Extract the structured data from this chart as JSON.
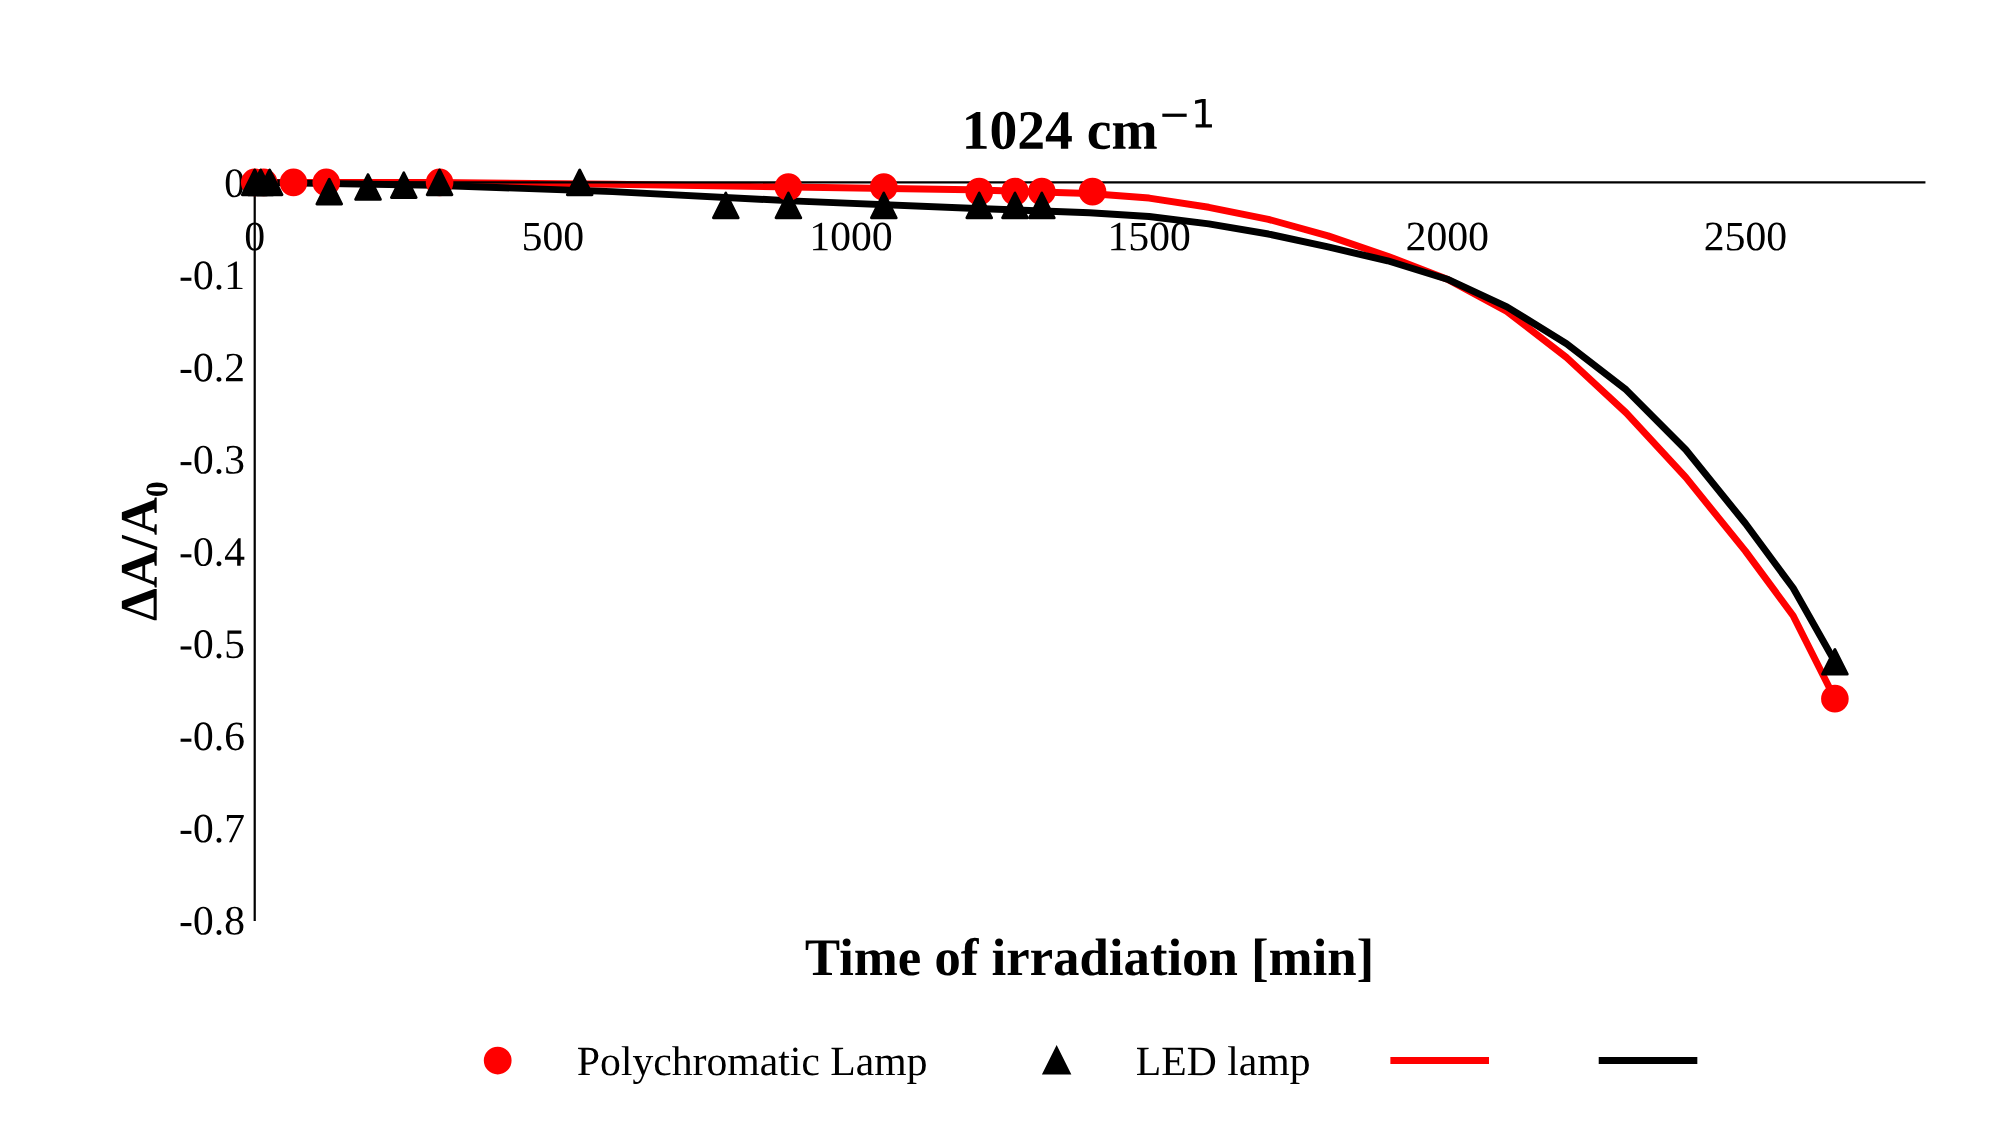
{
  "chart_data": {
    "type": "scatter",
    "title": "1024 cm$^{−1}$",
    "xlabel": "Time of irradiation [min]",
    "ylabel": "ΔA/A₀",
    "xlim": [
      0,
      2800
    ],
    "xticks": [
      0,
      500,
      1000,
      1500,
      2000,
      2500
    ],
    "ylim": [
      -0.8,
      0
    ],
    "yticks": [
      {
        "value": 0,
        "label": "0"
      },
      {
        "value": -0.1,
        "label": "-0.1"
      },
      {
        "value": -0.2,
        "label": "-0.2"
      },
      {
        "value": -0.3,
        "label": "-0.3"
      },
      {
        "value": -0.4,
        "label": "-0.4"
      },
      {
        "value": -0.5,
        "label": "-0.5"
      },
      {
        "value": -0.6,
        "label": "-0.6"
      },
      {
        "value": -0.7,
        "label": "-0.7"
      },
      {
        "value": -0.8,
        "label": "-0.8"
      }
    ],
    "grid": false,
    "legend": "bottom",
    "series": [
      {
        "name": "Polychromatic Lamp",
        "marker": "circle",
        "color": "#ff0000",
        "x": [
          0,
          15,
          65,
          120,
          310,
          895,
          1055,
          1215,
          1275,
          1320,
          1405,
          2650
        ],
        "values": [
          0,
          0,
          0,
          0,
          0,
          -0.005,
          -0.005,
          -0.01,
          -0.01,
          -0.01,
          -0.01,
          -0.56
        ]
      },
      {
        "name": "LED lamp",
        "marker": "triangle",
        "color": "#000000",
        "x": [
          0,
          10,
          25,
          125,
          190,
          250,
          310,
          545,
          790,
          895,
          1055,
          1215,
          1275,
          1320,
          2650
        ],
        "values": [
          0,
          0,
          0,
          -0.01,
          -0.005,
          -0.003,
          0,
          0,
          -0.025,
          -0.025,
          -0.025,
          -0.025,
          -0.025,
          -0.025,
          -0.52
        ]
      },
      {
        "type": "line",
        "color": "#ff0000",
        "x": [
          0,
          300,
          600,
          900,
          1200,
          1400,
          1500,
          1600,
          1700,
          1800,
          1900,
          2000,
          2100,
          2200,
          2300,
          2400,
          2500,
          2580,
          2650
        ],
        "values": [
          0,
          0,
          -0.002,
          -0.005,
          -0.008,
          -0.012,
          -0.017,
          -0.027,
          -0.04,
          -0.058,
          -0.08,
          -0.105,
          -0.14,
          -0.19,
          -0.25,
          -0.32,
          -0.4,
          -0.47,
          -0.56
        ]
      },
      {
        "type": "line",
        "color": "#000000",
        "x": [
          0,
          300,
          600,
          900,
          1200,
          1400,
          1500,
          1600,
          1700,
          1800,
          1900,
          2000,
          2100,
          2200,
          2300,
          2400,
          2500,
          2580,
          2650
        ],
        "values": [
          0,
          -0.003,
          -0.01,
          -0.02,
          -0.028,
          -0.033,
          -0.037,
          -0.045,
          -0.056,
          -0.07,
          -0.085,
          -0.105,
          -0.135,
          -0.175,
          -0.225,
          -0.29,
          -0.37,
          -0.44,
          -0.52
        ]
      }
    ]
  }
}
